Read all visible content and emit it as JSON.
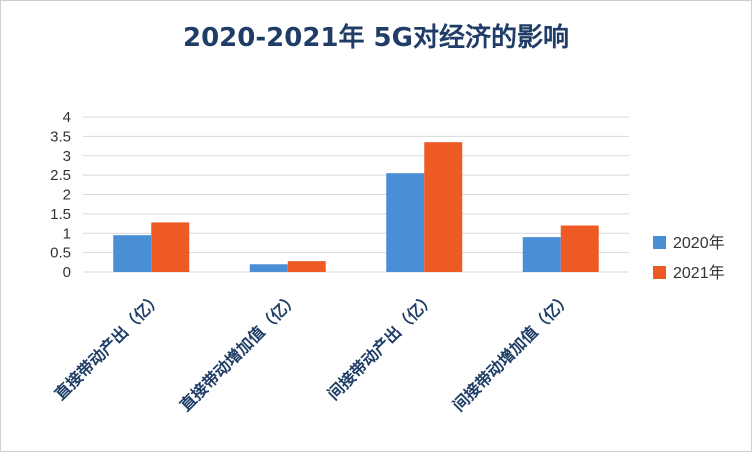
{
  "chart_data": {
    "type": "bar",
    "title": "2020-2021年 5G对经济的影响",
    "categories": [
      "直接带动产出（亿）",
      "直接带动增加值（亿）",
      "间接带动产出（亿）",
      "间接带动增加值（亿）"
    ],
    "series": [
      {
        "name": "2020年",
        "values": [
          0.95,
          0.2,
          2.55,
          0.9
        ],
        "color": "#4a8fd6"
      },
      {
        "name": "2021年",
        "values": [
          1.28,
          0.28,
          3.35,
          1.2
        ],
        "color": "#ee5a24"
      }
    ],
    "ylim": [
      0,
      4
    ],
    "yticks": [
      "0",
      "0.5",
      "1",
      "1.5",
      "2",
      "2.5",
      "3",
      "3.5",
      "4"
    ],
    "grid": true,
    "legend": "right"
  }
}
